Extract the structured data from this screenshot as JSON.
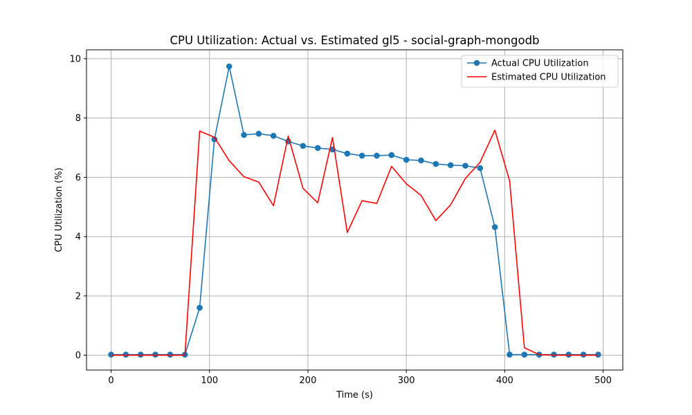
{
  "chart_data": {
    "type": "line",
    "title": "CPU Utilization: Actual vs. Estimated gl5 - social-graph-mongodb",
    "xlabel": "Time (s)",
    "ylabel": "CPU Utilization (%)",
    "xlim": [
      -25,
      520
    ],
    "ylim": [
      -0.5,
      10.3
    ],
    "xticks": [
      0,
      100,
      200,
      300,
      400,
      500
    ],
    "yticks": [
      0,
      2,
      4,
      6,
      8,
      10
    ],
    "grid": true,
    "legend_position": "top-right",
    "series": [
      {
        "name": "Actual CPU Utilization",
        "color": "#1f77b4",
        "marker": "circle",
        "x": [
          0,
          15,
          30,
          45,
          60,
          75,
          90,
          105,
          120,
          135,
          150,
          165,
          180,
          195,
          210,
          225,
          240,
          255,
          270,
          285,
          300,
          315,
          330,
          345,
          360,
          375,
          390,
          405,
          420,
          435,
          450,
          465,
          480,
          495
        ],
        "y": [
          0.02,
          0.02,
          0.02,
          0.02,
          0.02,
          0.02,
          1.6,
          7.28,
          9.74,
          7.43,
          7.47,
          7.4,
          7.21,
          7.06,
          6.99,
          6.94,
          6.8,
          6.73,
          6.73,
          6.75,
          6.59,
          6.57,
          6.45,
          6.41,
          6.39,
          6.31,
          4.32,
          0.02,
          0.02,
          0.02,
          0.02,
          0.02,
          0.02,
          0.02
        ]
      },
      {
        "name": "Estimated CPU Utilization",
        "color": "#ff0000",
        "marker": "none",
        "x": [
          0,
          15,
          30,
          45,
          60,
          75,
          90,
          105,
          120,
          135,
          150,
          165,
          180,
          195,
          210,
          225,
          240,
          255,
          270,
          285,
          300,
          315,
          330,
          345,
          360,
          375,
          390,
          405,
          420,
          435,
          450,
          465,
          480,
          495
        ],
        "y": [
          0.0,
          0.0,
          0.0,
          0.0,
          0.0,
          0.0,
          7.56,
          7.35,
          6.56,
          6.02,
          5.84,
          5.04,
          7.39,
          5.63,
          5.14,
          7.34,
          4.14,
          5.21,
          5.12,
          6.37,
          5.78,
          5.39,
          4.54,
          5.07,
          5.96,
          6.51,
          7.59,
          5.88,
          0.25,
          0.02,
          0.0,
          0.0,
          0.0,
          0.0
        ]
      }
    ]
  }
}
